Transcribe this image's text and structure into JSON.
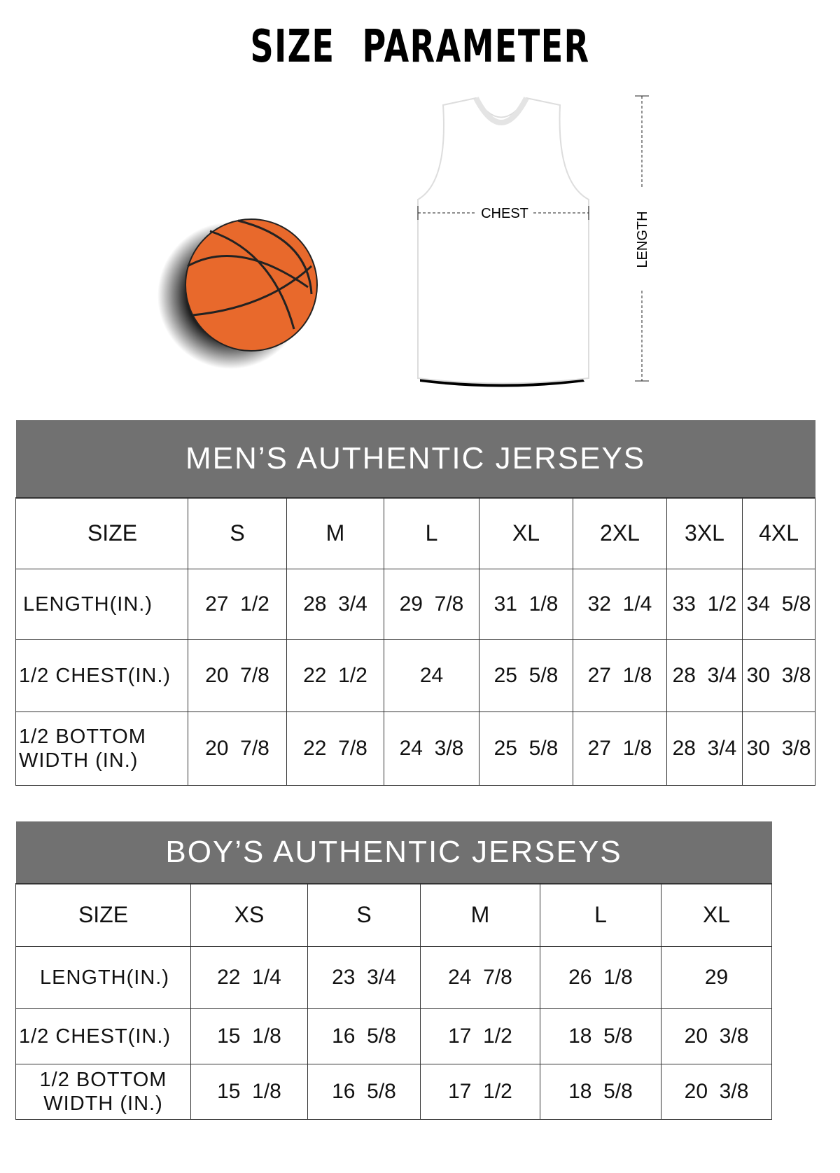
{
  "title": "SIZE PARAMETER",
  "illustration": {
    "chest_label": "CHEST",
    "length_label": "LENGTH",
    "ball_color": "#e8692c"
  },
  "colors": {
    "header_bg": "#717171"
  },
  "mens": {
    "title": "MEN’S AUTHENTIC JERSEYS",
    "size_label": "SIZE",
    "sizes": [
      "S",
      "M",
      "L",
      "XL",
      "2XL",
      "3XL",
      "4XL"
    ],
    "rows": [
      {
        "label": "LENGTH(IN.)",
        "values": [
          "27  1/2",
          "28  3/4",
          "29  7/8",
          "31  1/8",
          "32  1/4",
          "33  1/2",
          "34  5/8"
        ]
      },
      {
        "label": "1/2 CHEST(IN.)",
        "values": [
          "20  7/8",
          "22  1/2",
          "24",
          "25  5/8",
          "27  1/8",
          "28  3/4",
          "30  3/8"
        ]
      },
      {
        "label": "1/2 BOTTOM WIDTH  (IN.)",
        "values": [
          "20  7/8",
          "22  7/8",
          "24  3/8",
          "25  5/8",
          "27  1/8",
          "28  3/4",
          "30  3/8"
        ]
      }
    ]
  },
  "boys": {
    "title": "BOY’S AUTHENTIC JERSEYS",
    "size_label": "SIZE",
    "sizes": [
      "XS",
      "S",
      "M",
      "L",
      "XL"
    ],
    "rows": [
      {
        "label": "LENGTH(IN.)",
        "values": [
          "22  1/4",
          "23  3/4",
          "24  7/8",
          "26  1/8",
          "29"
        ]
      },
      {
        "label": "1/2 CHEST(IN.)",
        "values": [
          "15  1/8",
          "16  5/8",
          "17  1/2",
          "18  5/8",
          "20  3/8"
        ]
      },
      {
        "label": "1/2 BOTTOM WIDTH  (IN.)",
        "values": [
          "15  1/8",
          "16  5/8",
          "17  1/2",
          "18  5/8",
          "20  3/8"
        ]
      }
    ]
  }
}
